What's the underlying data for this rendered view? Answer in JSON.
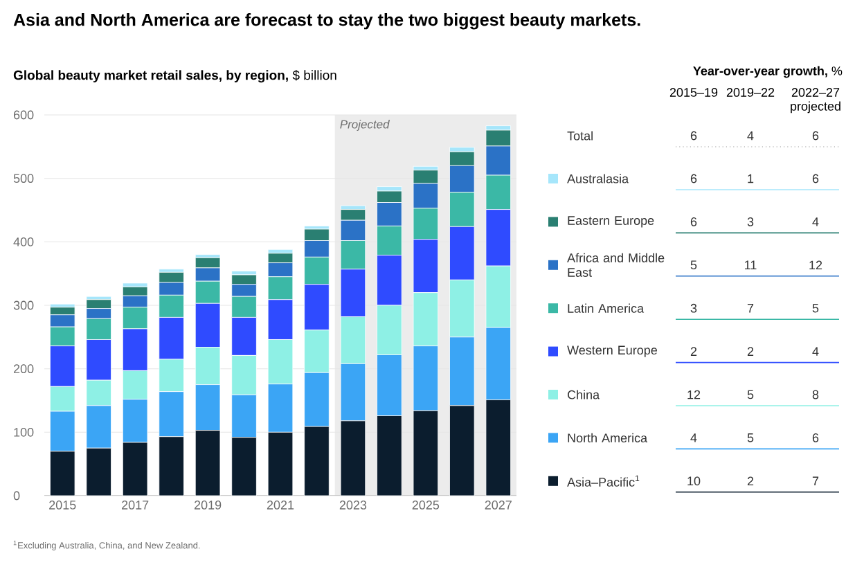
{
  "chart_data": [
    {
      "type": "bar",
      "title": "Asia and North America are forecast to stay the two biggest beauty markets.",
      "subtitle": "**Global beauty market retail sales, by region,** $ billion",
      "stacked": true,
      "x": [
        2015,
        2016,
        2017,
        2018,
        2019,
        2020,
        2021,
        2022,
        2023,
        2024,
        2025,
        2026,
        2027
      ],
      "xlim": [
        2014.5,
        2027.5
      ],
      "xticks": [
        2015,
        2017,
        2019,
        2021,
        2023,
        2025,
        2027
      ],
      "ylim": [
        0,
        600
      ],
      "yticks": [
        0,
        100,
        200,
        300,
        400,
        500,
        600
      ],
      "grid": "y",
      "legend": "right",
      "bands": [
        {
          "axis": "x",
          "from": 2022.5,
          "to": 2027.5,
          "label": "Projected",
          "color": "#ececec"
        }
      ],
      "series": [
        {
          "color": "#0b1d2e",
          "values": [
            70,
            75,
            84,
            93,
            103,
            92,
            100,
            109,
            118,
            126,
            134,
            142,
            151
          ]
        },
        {
          "color": "#3ba5f5",
          "values": [
            63,
            67,
            68,
            71,
            72,
            67,
            76,
            85,
            90,
            96,
            102,
            108,
            114
          ]
        },
        {
          "color": "#8ef0e5",
          "values": [
            39,
            40,
            45,
            51,
            59,
            62,
            70,
            67,
            74,
            78,
            84,
            90,
            97
          ]
        },
        {
          "color": "#2f4bff",
          "values": [
            64,
            64,
            66,
            66,
            69,
            60,
            63,
            72,
            75,
            79,
            84,
            84,
            89
          ]
        },
        {
          "color": "#3bb8a6",
          "values": [
            30,
            33,
            34,
            35,
            35,
            33,
            36,
            43,
            45,
            46,
            49,
            54,
            54
          ]
        },
        {
          "color": "#2b72c6",
          "values": [
            19,
            16,
            18,
            20,
            21,
            19,
            22,
            26,
            32,
            37,
            39,
            42,
            46
          ]
        },
        {
          "color": "#2a7f72",
          "values": [
            12,
            14,
            14,
            16,
            16,
            15,
            15,
            18,
            17,
            18,
            21,
            22,
            25
          ]
        },
        {
          "color": "#a6e6fb",
          "values": [
            5,
            5,
            6,
            5,
            5,
            6,
            6,
            5,
            6,
            7,
            6,
            7,
            7
          ]
        }
      ],
      "annotations": [
        "$^{1}$Excluding Australia, China, and New Zealand."
      ]
    },
    {
      "type": "other",
      "data_labels": true,
      "title": "**Year-over-year growth,** %",
      "categories": [
        "Total",
        "Australasia",
        "Eastern Europe",
        "Africa and Middle East",
        "Latin America",
        "Western Europe",
        "China",
        "North America",
        "Asia–Pacific$^{1}$"
      ],
      "series": [
        {
          "name": "2015–19",
          "values": [
            6,
            6,
            6,
            5,
            3,
            2,
            12,
            4,
            10
          ]
        },
        {
          "name": "2019–22",
          "values": [
            4,
            1,
            3,
            11,
            7,
            2,
            5,
            5,
            2
          ]
        },
        {
          "name": "2022–27 projected",
          "values": [
            6,
            6,
            4,
            12,
            5,
            4,
            8,
            6,
            7
          ]
        }
      ]
    }
  ]
}
